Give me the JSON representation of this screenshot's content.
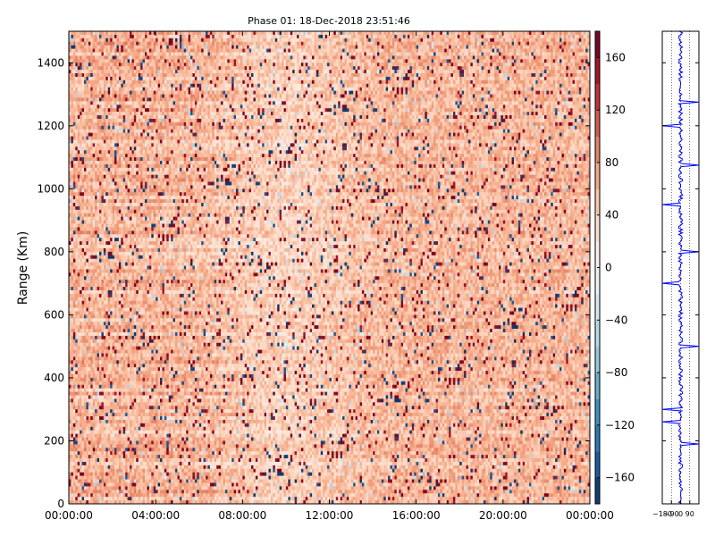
{
  "chart_data": [
    {
      "type": "heatmap",
      "title": "Phase 01: 18-Dec-2018 23:51:46",
      "ylabel": "Range (Km)",
      "xlabel": "",
      "x_tick_labels": [
        "00:00:00",
        "04:00:00",
        "08:00:00",
        "12:00:00",
        "16:00:00",
        "20:00:00",
        "00:00:00"
      ],
      "y_ticks": [
        0,
        200,
        400,
        600,
        800,
        1000,
        1200,
        1400
      ],
      "ylim": [
        0,
        1500
      ],
      "x_hours_range": [
        0,
        24
      ],
      "colorbar": {
        "ticks": [
          160,
          120,
          80,
          40,
          0,
          -40,
          -80,
          -120,
          -160
        ],
        "range": [
          -180,
          180
        ],
        "colormap": "RdBu_r",
        "colors_low_to_high": [
          "#053061",
          "#2166ac",
          "#4393c3",
          "#92c5de",
          "#d1e5f0",
          "#f7f7f7",
          "#fddbc7",
          "#f4a582",
          "#d6604d",
          "#b2182b",
          "#67001f"
        ]
      },
      "dominant_value": 60,
      "description_of_pattern": "noisy phase field; mostly light-red (about 30–90 deg) with scattered dark red and dark blue speckle"
    },
    {
      "type": "line",
      "series": [
        {
          "values_description": "phase profile vs range, centered near 0 with sparse spikes to ±180"
        }
      ],
      "x_tick_labels": [
        "−180",
        "−90",
        "0",
        "90"
      ],
      "xlim": [
        -180,
        180
      ],
      "ylim": [
        0,
        1500
      ],
      "line_color": "#0000ff",
      "grid": "dotted vertical"
    }
  ]
}
